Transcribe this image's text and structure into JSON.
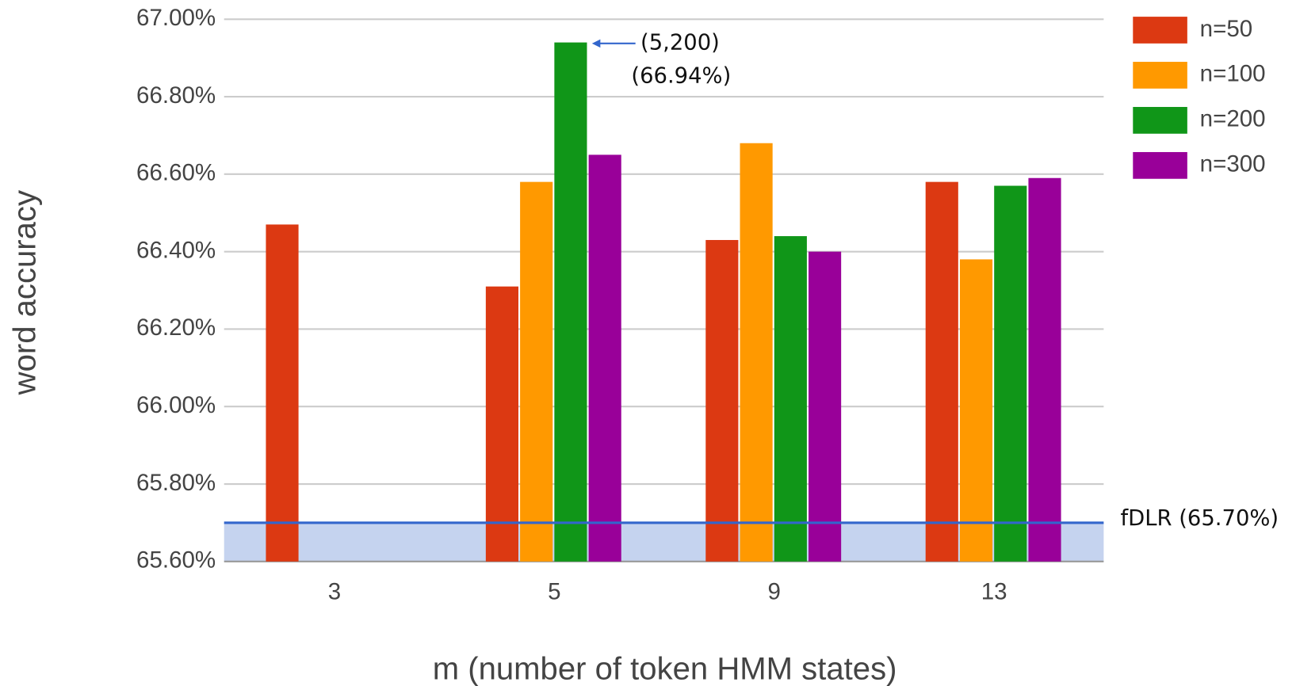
{
  "chart_data": {
    "type": "bar",
    "x_label": "m (number of token HMM states)",
    "y_label": "word accuracy",
    "categories": [
      "3",
      "5",
      "9",
      "13"
    ],
    "series": [
      {
        "name": "n=50",
        "color": "#dc3912",
        "values": [
          66.47,
          66.31,
          66.43,
          66.58
        ]
      },
      {
        "name": "n=100",
        "color": "#ff9900",
        "values": [
          null,
          66.58,
          66.68,
          66.38
        ]
      },
      {
        "name": "n=200",
        "color": "#109618",
        "values": [
          null,
          66.94,
          66.44,
          66.57
        ]
      },
      {
        "name": "n=300",
        "color": "#990099",
        "values": [
          null,
          66.65,
          66.4,
          66.59
        ]
      }
    ],
    "ylim": [
      65.6,
      67.0
    ],
    "yticks": [
      {
        "value": 65.6,
        "label": "65.60%"
      },
      {
        "value": 65.8,
        "label": "65.80%"
      },
      {
        "value": 66.0,
        "label": "66.00%"
      },
      {
        "value": 66.2,
        "label": "66.20%"
      },
      {
        "value": 66.4,
        "label": "66.40%"
      },
      {
        "value": 66.6,
        "label": "66.60%"
      },
      {
        "value": 66.8,
        "label": "66.80%"
      },
      {
        "value": 67.0,
        "label": "67.00%"
      }
    ],
    "grid": true,
    "baseline": {
      "label": "fDLR (65.70%)",
      "value": 65.7,
      "color": "#3366cc"
    },
    "annotations": [
      "(5,200)",
      "(66.94%)"
    ]
  }
}
